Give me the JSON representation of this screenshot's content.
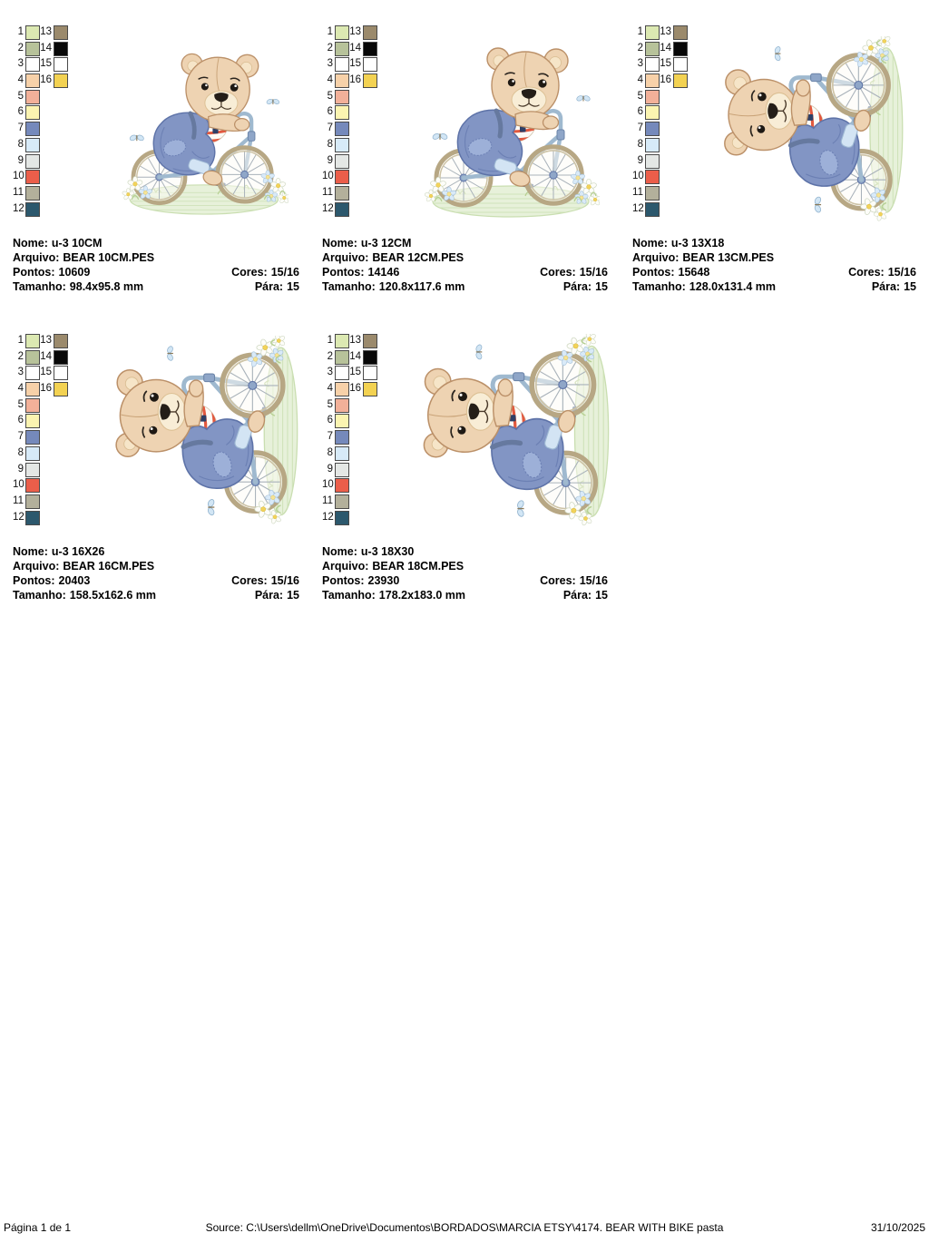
{
  "field_labels": {
    "name": "Nome:",
    "file": "Arquivo:",
    "stitches": "Pontos:",
    "size": "Tamanho:",
    "colors": "Cores:",
    "stop": "Pára:"
  },
  "palette": [
    {
      "num": "1",
      "color": "#dce9b2"
    },
    {
      "num": "2",
      "color": "#b7c29a"
    },
    {
      "num": "3",
      "color": "#ffffff"
    },
    {
      "num": "4",
      "color": "#f7d1a9"
    },
    {
      "num": "5",
      "color": "#f2b099"
    },
    {
      "num": "6",
      "color": "#fbf4b1"
    },
    {
      "num": "7",
      "color": "#7589bb"
    },
    {
      "num": "8",
      "color": "#d7eaf8"
    },
    {
      "num": "9",
      "color": "#e4e7e5"
    },
    {
      "num": "10",
      "color": "#eb5e4a"
    },
    {
      "num": "11",
      "color": "#b3b09b"
    },
    {
      "num": "12",
      "color": "#2c586d"
    },
    {
      "num": "13",
      "color": "#9b8a6c"
    },
    {
      "num": "14",
      "color": "#080808"
    },
    {
      "num": "15",
      "color": "#ffffff"
    },
    {
      "num": "16",
      "color": "#f3d252"
    }
  ],
  "designs": [
    {
      "name": "u-3 10CM",
      "file": "BEAR 10CM.PES",
      "stitches": "10609",
      "size": "98.4x95.8 mm",
      "colors": "15/16",
      "stop": "15",
      "rotated": false
    },
    {
      "name": "u-3 12CM",
      "file": "BEAR 12CM.PES",
      "stitches": "14146",
      "size": "120.8x117.6 mm",
      "colors": "15/16",
      "stop": "15",
      "rotated": false
    },
    {
      "name": "u-3 13X18",
      "file": "BEAR 13CM.PES",
      "stitches": "15648",
      "size": "128.0x131.4 mm",
      "colors": "15/16",
      "stop": "15",
      "rotated": true
    },
    {
      "name": "u-3 16X26",
      "file": "BEAR 16CM.PES",
      "stitches": "20403",
      "size": "158.5x162.6 mm",
      "colors": "15/16",
      "stop": "15",
      "rotated": true
    },
    {
      "name": "u-3 18X30",
      "file": "BEAR 18CM.PES",
      "stitches": "23930",
      "size": "178.2x183.0 mm",
      "colors": "15/16",
      "stop": "15",
      "rotated": true
    }
  ],
  "footer": {
    "page_label": "Página 1 de 1",
    "source": "Source: C:\\Users\\dellm\\OneDrive\\Documentos\\BORDADOS\\MARCIA ETSY\\4174. BEAR WITH BIKE pasta",
    "date": "31/10/2025"
  }
}
